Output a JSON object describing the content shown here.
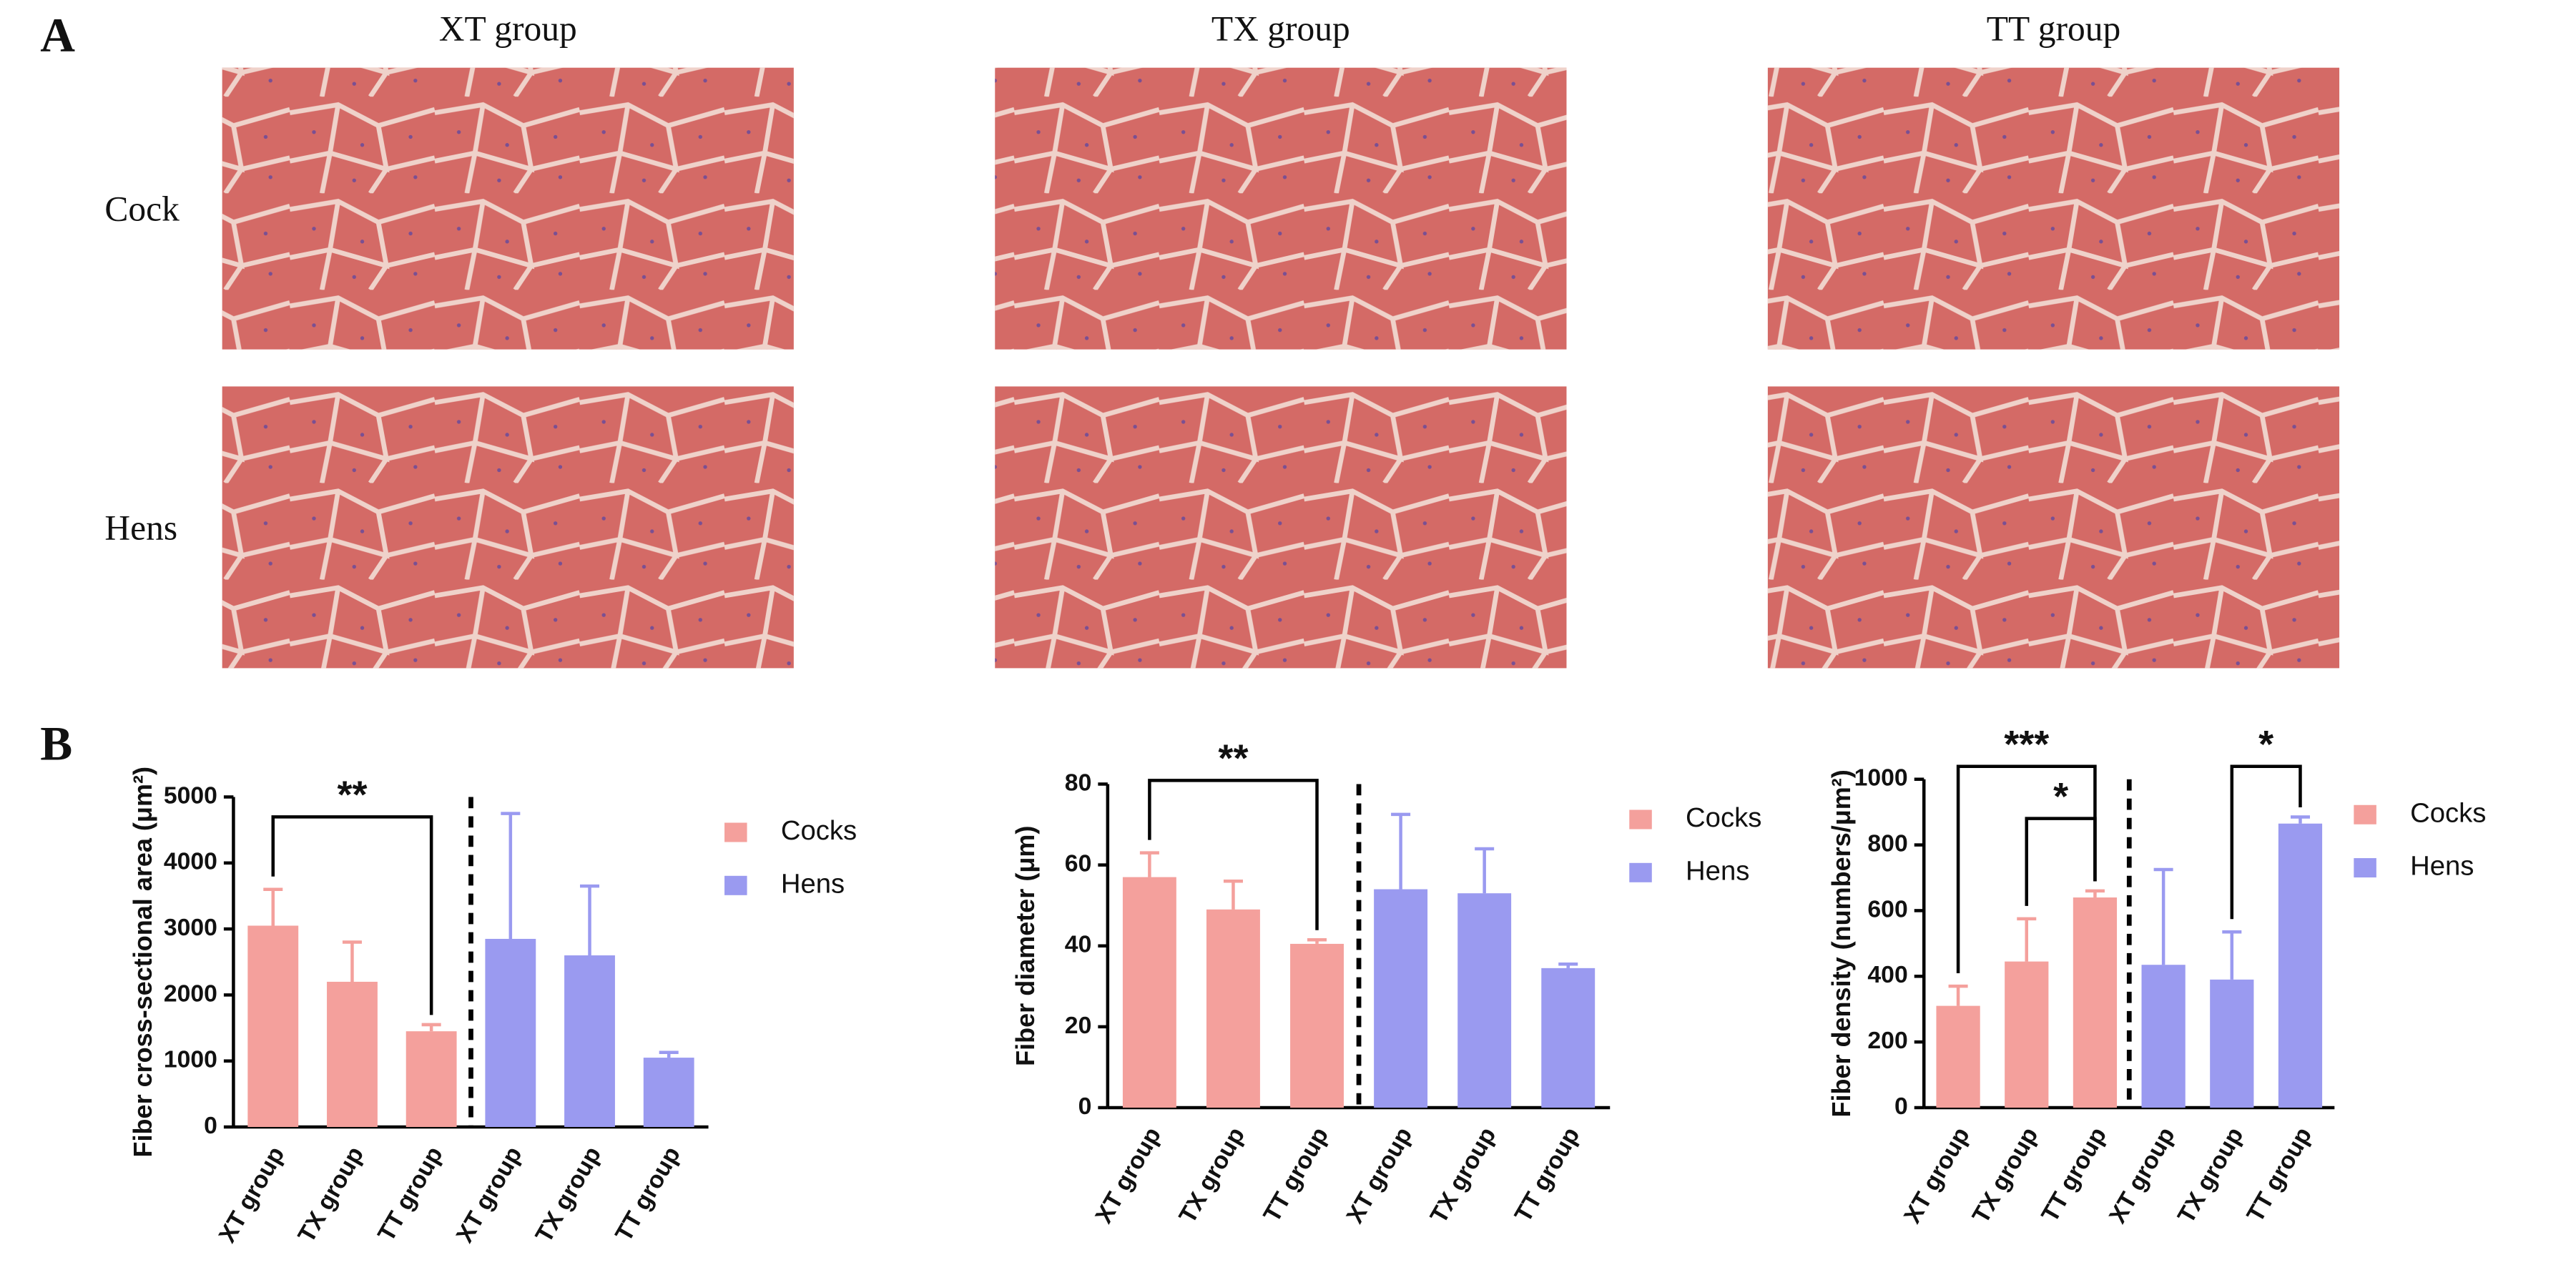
{
  "panel_a": {
    "label": "A",
    "columns": [
      "XT group",
      "TX group",
      "TT group"
    ],
    "rows": [
      "Cock",
      "Hens"
    ]
  },
  "panel_b": {
    "label": "B"
  },
  "chart_data": [
    {
      "type": "bar",
      "ylabel": "Fiber cross-sectional area (μm²)",
      "categories": [
        "XT group",
        "TX group",
        "TT group",
        "XT group",
        "TX group",
        "TT group"
      ],
      "series": [
        {
          "name": "Cocks",
          "color": "#f4a09c",
          "values": [
            3050,
            2200,
            1450,
            null,
            null,
            null
          ],
          "errors": [
            550,
            600,
            100,
            null,
            null,
            null
          ]
        },
        {
          "name": "Hens",
          "color": "#9a9af0",
          "values": [
            null,
            null,
            null,
            2850,
            2600,
            1050
          ],
          "errors": [
            null,
            null,
            null,
            1900,
            1050,
            80
          ]
        }
      ],
      "ylim": [
        0,
        5000
      ],
      "yticks": [
        0,
        1000,
        2000,
        3000,
        4000,
        5000
      ],
      "annotations": [
        {
          "text": "**",
          "from": 0,
          "to": 2
        }
      ]
    },
    {
      "type": "bar",
      "ylabel": "Fiber diameter (μm)",
      "categories": [
        "XT group",
        "TX group",
        "TT group",
        "XT group",
        "TX group",
        "TT group"
      ],
      "series": [
        {
          "name": "Cocks",
          "color": "#f4a09c",
          "values": [
            57,
            49,
            40.5,
            null,
            null,
            null
          ],
          "errors": [
            6,
            7,
            1,
            null,
            null,
            null
          ]
        },
        {
          "name": "Hens",
          "color": "#9a9af0",
          "values": [
            null,
            null,
            null,
            54,
            53,
            34.5
          ],
          "errors": [
            null,
            null,
            null,
            18.5,
            11,
            1
          ]
        }
      ],
      "ylim": [
        0,
        80
      ],
      "yticks": [
        0,
        20,
        40,
        60,
        80
      ],
      "annotations": [
        {
          "text": "**",
          "from": 0,
          "to": 2
        }
      ]
    },
    {
      "type": "bar",
      "ylabel": "Fiber density (numbers/μm²)",
      "categories": [
        "XT group",
        "TX group",
        "TT group",
        "XT group",
        "TX group",
        "TT group"
      ],
      "series": [
        {
          "name": "Cocks",
          "color": "#f4a09c",
          "values": [
            310,
            445,
            640,
            null,
            null,
            null
          ],
          "errors": [
            60,
            130,
            20,
            null,
            null,
            null
          ]
        },
        {
          "name": "Hens",
          "color": "#9a9af0",
          "values": [
            null,
            null,
            null,
            435,
            390,
            865
          ],
          "errors": [
            null,
            null,
            null,
            290,
            145,
            20
          ]
        }
      ],
      "ylim": [
        0,
        1000
      ],
      "yticks": [
        0,
        200,
        400,
        600,
        800,
        1000
      ],
      "annotations": [
        {
          "text": "***",
          "from": 0,
          "to": 2
        },
        {
          "text": "*",
          "from": 1,
          "to": 2
        },
        {
          "text": "*",
          "from": 4,
          "to": 5
        }
      ]
    }
  ]
}
